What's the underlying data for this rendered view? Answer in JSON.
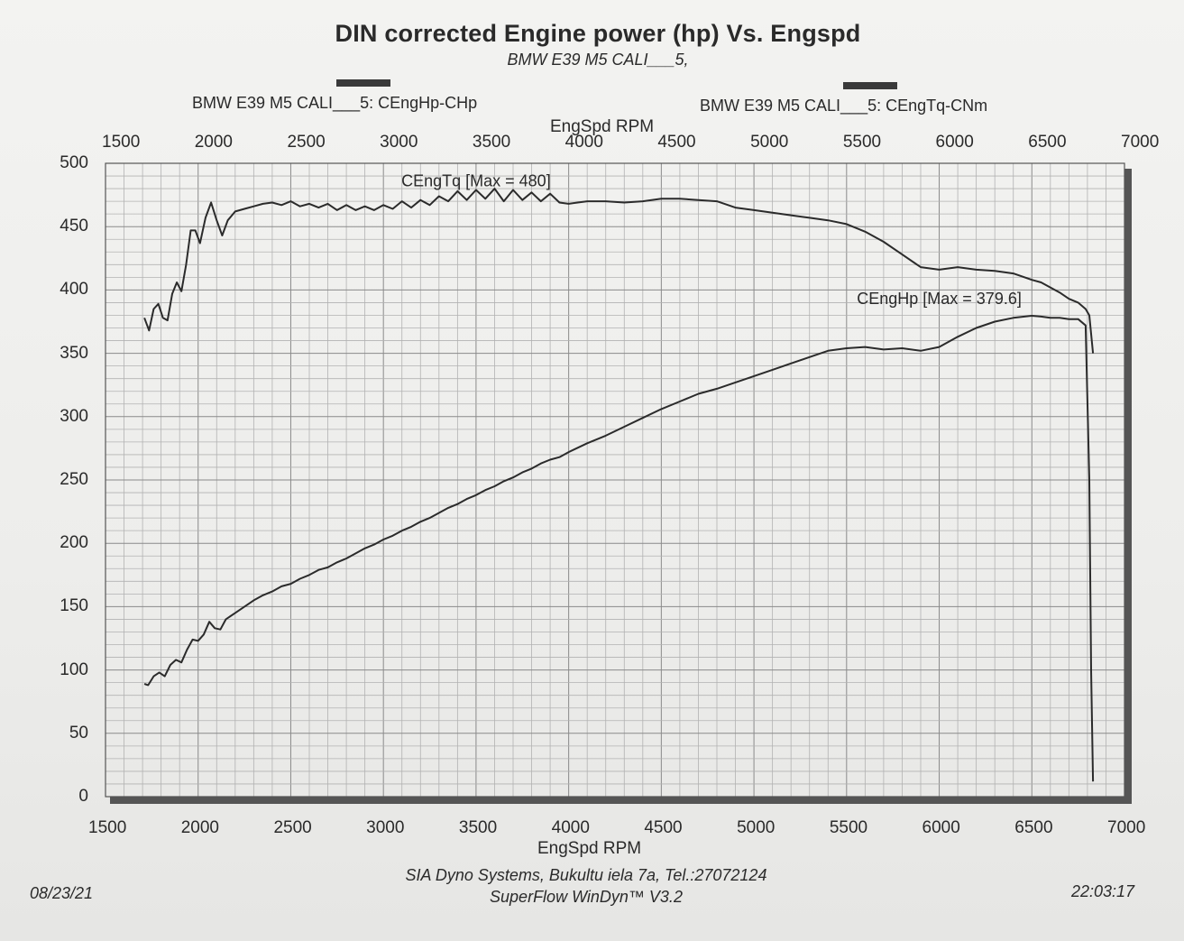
{
  "header": {
    "title": "DIN corrected Engine power (hp) Vs. Engspd",
    "subtitle": "BMW E39 M5 CALI___5,"
  },
  "legend": {
    "hp_label": "BMW E39 M5 CALI___5: CEngHp-CHp",
    "tq_label": "BMW E39 M5 CALI___5: CEngTq-CNm"
  },
  "footer": {
    "date": "08/23/21",
    "time": "22:03:17",
    "company": "SIA Dyno Systems, Bukultu iela 7a, Tel.:27072124",
    "software": "SuperFlow WinDyn™ V3.2"
  },
  "chart_data": {
    "type": "line",
    "title": "DIN corrected Engine power (hp) Vs. Engspd",
    "xlabel": "EngSpd RPM",
    "ylabel": "",
    "xlim": [
      1500,
      7000
    ],
    "ylim": [
      0,
      500
    ],
    "x_ticks": [
      1500,
      2000,
      2500,
      3000,
      3500,
      4000,
      4500,
      5000,
      5500,
      6000,
      6500,
      7000
    ],
    "y_ticks": [
      0,
      50,
      100,
      150,
      200,
      250,
      300,
      350,
      400,
      450,
      500
    ],
    "grid": true,
    "annotations": [
      {
        "text": "CEngTq [Max = 480]",
        "x": 3500,
        "y": 482
      },
      {
        "text": "CEngHp [Max = 379.6]",
        "x": 6000,
        "y": 389
      }
    ],
    "series": [
      {
        "name": "BMW E39 M5 CALI___5: CEngHp-CHp",
        "x": [
          1710,
          1730,
          1760,
          1790,
          1820,
          1850,
          1880,
          1910,
          1940,
          1970,
          2000,
          2030,
          2060,
          2090,
          2120,
          2150,
          2200,
          2250,
          2300,
          2350,
          2400,
          2450,
          2500,
          2550,
          2600,
          2650,
          2700,
          2750,
          2800,
          2850,
          2900,
          2950,
          3000,
          3050,
          3100,
          3150,
          3200,
          3250,
          3300,
          3350,
          3400,
          3450,
          3500,
          3550,
          3600,
          3650,
          3700,
          3750,
          3800,
          3850,
          3900,
          3950,
          4000,
          4100,
          4200,
          4300,
          4400,
          4500,
          4600,
          4700,
          4800,
          4900,
          5000,
          5100,
          5200,
          5300,
          5400,
          5500,
          5600,
          5700,
          5800,
          5900,
          6000,
          6100,
          6200,
          6300,
          6400,
          6500,
          6550,
          6600,
          6650,
          6700,
          6750,
          6790,
          6810,
          6820,
          6830
        ],
        "y": [
          89,
          88,
          95,
          98,
          95,
          104,
          108,
          106,
          116,
          124,
          123,
          128,
          138,
          133,
          132,
          140,
          145,
          150,
          155,
          159,
          162,
          166,
          168,
          172,
          175,
          179,
          181,
          185,
          188,
          192,
          196,
          199,
          203,
          206,
          210,
          213,
          217,
          220,
          224,
          228,
          231,
          235,
          238,
          242,
          245,
          249,
          252,
          256,
          259,
          263,
          266,
          268,
          272,
          279,
          285,
          292,
          299,
          306,
          312,
          318,
          322,
          327,
          332,
          337,
          342,
          347,
          352,
          354,
          355,
          353,
          354,
          352,
          355,
          363,
          370,
          375,
          378,
          379.6,
          379,
          378,
          378,
          377,
          377,
          372,
          250,
          100,
          12
        ]
      },
      {
        "name": "BMW E39 M5 CALI___5: CEngTq-CNm",
        "x": [
          1710,
          1735,
          1760,
          1785,
          1810,
          1835,
          1860,
          1885,
          1910,
          1935,
          1960,
          1985,
          2010,
          2040,
          2070,
          2100,
          2130,
          2160,
          2200,
          2250,
          2300,
          2350,
          2400,
          2450,
          2500,
          2550,
          2600,
          2650,
          2700,
          2750,
          2800,
          2850,
          2900,
          2950,
          3000,
          3050,
          3100,
          3150,
          3200,
          3250,
          3300,
          3350,
          3400,
          3450,
          3500,
          3550,
          3600,
          3650,
          3700,
          3750,
          3800,
          3850,
          3900,
          3950,
          4000,
          4100,
          4200,
          4300,
          4400,
          4500,
          4600,
          4700,
          4800,
          4900,
          5000,
          5100,
          5200,
          5300,
          5400,
          5500,
          5600,
          5700,
          5800,
          5900,
          6000,
          6100,
          6200,
          6300,
          6400,
          6500,
          6550,
          6600,
          6650,
          6700,
          6750,
          6790,
          6810,
          6830
        ],
        "y": [
          378,
          368,
          385,
          389,
          378,
          376,
          397,
          406,
          399,
          420,
          447,
          447,
          437,
          457,
          469,
          455,
          443,
          455,
          462,
          464,
          466,
          468,
          469,
          467,
          470,
          466,
          468,
          465,
          468,
          463,
          467,
          463,
          466,
          463,
          467,
          464,
          470,
          465,
          471,
          467,
          474,
          470,
          478,
          471,
          479,
          472,
          480,
          470,
          479,
          471,
          477,
          470,
          476,
          469,
          468,
          470,
          470,
          469,
          470,
          472,
          472,
          471,
          470,
          465,
          463,
          461,
          459,
          457,
          455,
          452,
          446,
          438,
          428,
          418,
          416,
          418,
          416,
          415,
          413,
          408,
          406,
          402,
          398,
          393,
          390,
          385,
          380,
          350
        ]
      }
    ]
  }
}
